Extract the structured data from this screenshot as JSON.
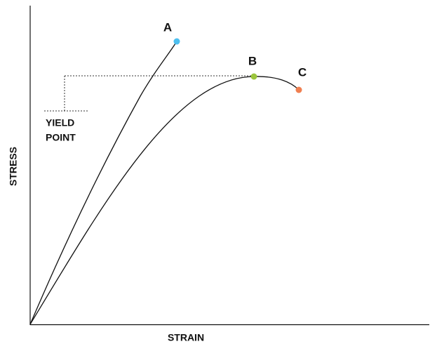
{
  "axes": {
    "x_label": "STRAIN",
    "y_label": "STRESS"
  },
  "annotation": {
    "lines": [
      "YIELD",
      "POINT"
    ]
  },
  "points": [
    {
      "label": "A",
      "color": "#4dbfef"
    },
    {
      "label": "B",
      "color": "#9bc53d"
    },
    {
      "label": "C",
      "color": "#f07f50"
    }
  ]
}
